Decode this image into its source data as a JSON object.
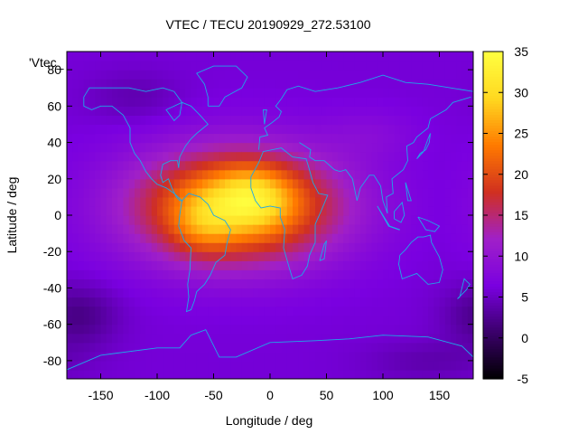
{
  "chart_data": {
    "type": "heatmap",
    "title": "VTEC / TECU 20190929_272.53100",
    "xlabel": "Longitude / deg",
    "ylabel": "Latitude / deg",
    "key_label": "'Vtec_",
    "xlim": [
      -180,
      180
    ],
    "ylim": [
      -90,
      90
    ],
    "x_ticks": [
      -150,
      -100,
      -50,
      0,
      50,
      100,
      150
    ],
    "y_ticks": [
      -80,
      -60,
      -40,
      -20,
      0,
      20,
      40,
      60,
      80
    ],
    "colorbar": {
      "min": -5,
      "max": 35,
      "ticks": [
        -5,
        0,
        5,
        10,
        15,
        20,
        25,
        30,
        35
      ],
      "palette": [
        "#000000",
        "#3a006a",
        "#7a00e0",
        "#a020c8",
        "#d03020",
        "#ff7a00",
        "#ffd820",
        "#ffff40"
      ]
    },
    "grid": false,
    "legend": "none",
    "background_level": 6,
    "features": [
      {
        "lon": -30,
        "lat": 5,
        "peak": 21,
        "sigma_lon": 65,
        "sigma_lat": 22
      },
      {
        "lon": -15,
        "lat": 10,
        "peak": 8,
        "sigma_lon": 25,
        "sigma_lat": 12
      },
      {
        "lon": -60,
        "lat": -5,
        "peak": 5,
        "sigma_lon": 20,
        "sigma_lat": 12
      },
      {
        "lon": 90,
        "lat": 45,
        "peak": 2,
        "sigma_lon": 30,
        "sigma_lat": 10
      },
      {
        "lon": -170,
        "lat": -55,
        "peak": -4,
        "sigma_lon": 25,
        "sigma_lat": 12
      },
      {
        "lon": -120,
        "lat": 65,
        "peak": -2,
        "sigma_lon": 30,
        "sigma_lat": 10
      },
      {
        "lon": 140,
        "lat": -80,
        "peak": -2,
        "sigma_lon": 40,
        "sigma_lat": 8
      }
    ],
    "coastlines": [
      [
        [
          -165,
          65
        ],
        [
          -160,
          70
        ],
        [
          -140,
          70
        ],
        [
          -125,
          70
        ],
        [
          -110,
          68
        ],
        [
          -95,
          70
        ],
        [
          -85,
          68
        ],
        [
          -78,
          62
        ],
        [
          -92,
          58
        ],
        [
          -85,
          52
        ],
        [
          -80,
          55
        ],
        [
          -78,
          62
        ],
        [
          -70,
          60
        ],
        [
          -62,
          55
        ],
        [
          -55,
          50
        ],
        [
          -65,
          45
        ],
        [
          -70,
          42
        ],
        [
          -75,
          38
        ],
        [
          -80,
          32
        ],
        [
          -81,
          26
        ],
        [
          -82,
          30
        ],
        [
          -88,
          30
        ],
        [
          -95,
          28
        ],
        [
          -97,
          22
        ],
        [
          -95,
          18
        ],
        [
          -90,
          20
        ],
        [
          -87,
          15
        ],
        [
          -83,
          10
        ],
        [
          -80,
          8
        ],
        [
          -78,
          8
        ],
        [
          -85,
          12
        ],
        [
          -92,
          15
        ],
        [
          -100,
          17
        ],
        [
          -105,
          20
        ],
        [
          -110,
          24
        ],
        [
          -115,
          30
        ],
        [
          -120,
          34
        ],
        [
          -124,
          40
        ],
        [
          -124,
          48
        ],
        [
          -130,
          55
        ],
        [
          -140,
          60
        ],
        [
          -150,
          60
        ],
        [
          -158,
          58
        ],
        [
          -165,
          60
        ],
        [
          -165,
          65
        ]
      ],
      [
        [
          -78,
          8
        ],
        [
          -72,
          12
        ],
        [
          -62,
          10
        ],
        [
          -55,
          6
        ],
        [
          -50,
          0
        ],
        [
          -40,
          -3
        ],
        [
          -35,
          -8
        ],
        [
          -38,
          -15
        ],
        [
          -40,
          -22
        ],
        [
          -48,
          -26
        ],
        [
          -53,
          -33
        ],
        [
          -58,
          -38
        ],
        [
          -65,
          -42
        ],
        [
          -67,
          -47
        ],
        [
          -70,
          -52
        ],
        [
          -74,
          -53
        ],
        [
          -72,
          -45
        ],
        [
          -73,
          -38
        ],
        [
          -71,
          -30
        ],
        [
          -70,
          -18
        ],
        [
          -76,
          -14
        ],
        [
          -81,
          -6
        ],
        [
          -80,
          0
        ],
        [
          -78,
          8
        ]
      ],
      [
        [
          -17,
          15
        ],
        [
          -17,
          21
        ],
        [
          -10,
          29
        ],
        [
          -6,
          35
        ],
        [
          10,
          37
        ],
        [
          20,
          32
        ],
        [
          32,
          31
        ],
        [
          34,
          27
        ],
        [
          38,
          18
        ],
        [
          43,
          12
        ],
        [
          51,
          11
        ],
        [
          45,
          2
        ],
        [
          40,
          -5
        ],
        [
          40,
          -15
        ],
        [
          35,
          -22
        ],
        [
          33,
          -28
        ],
        [
          28,
          -33
        ],
        [
          20,
          -35
        ],
        [
          17,
          -29
        ],
        [
          12,
          -18
        ],
        [
          13,
          -8
        ],
        [
          9,
          -1
        ],
        [
          9,
          4
        ],
        [
          0,
          5
        ],
        [
          -8,
          4
        ],
        [
          -13,
          8
        ],
        [
          -17,
          15
        ]
      ],
      [
        [
          -10,
          36
        ],
        [
          -9,
          43
        ],
        [
          -2,
          44
        ],
        [
          -5,
          48
        ],
        [
          2,
          51
        ],
        [
          8,
          54
        ],
        [
          10,
          57
        ],
        [
          5,
          60
        ],
        [
          10,
          64
        ],
        [
          15,
          69
        ],
        [
          25,
          71
        ],
        [
          40,
          68
        ],
        [
          60,
          70
        ],
        [
          80,
          73
        ],
        [
          100,
          77
        ],
        [
          120,
          73
        ],
        [
          140,
          72
        ],
        [
          160,
          70
        ],
        [
          180,
          68
        ]
      ],
      [
        [
          26,
          40
        ],
        [
          36,
          36
        ],
        [
          35,
          32
        ],
        [
          40,
          30
        ],
        [
          48,
          30
        ],
        [
          57,
          25
        ],
        [
          62,
          24
        ],
        [
          67,
          25
        ],
        [
          73,
          20
        ],
        [
          77,
          8
        ],
        [
          80,
          15
        ],
        [
          88,
          22
        ],
        [
          92,
          22
        ],
        [
          98,
          16
        ],
        [
          100,
          8
        ],
        [
          104,
          1
        ],
        [
          103,
          10
        ],
        [
          109,
          12
        ],
        [
          108,
          20
        ],
        [
          118,
          25
        ],
        [
          122,
          30
        ],
        [
          121,
          38
        ],
        [
          127,
          40
        ],
        [
          130,
          43
        ],
        [
          140,
          48
        ],
        [
          142,
          53
        ],
        [
          156,
          58
        ],
        [
          162,
          62
        ],
        [
          178,
          65
        ]
      ],
      [
        [
          115,
          -22
        ],
        [
          114,
          -27
        ],
        [
          117,
          -35
        ],
        [
          130,
          -32
        ],
        [
          140,
          -38
        ],
        [
          150,
          -37
        ],
        [
          153,
          -30
        ],
        [
          150,
          -23
        ],
        [
          143,
          -15
        ],
        [
          142,
          -11
        ],
        [
          136,
          -12
        ],
        [
          131,
          -12
        ],
        [
          125,
          -15
        ],
        [
          120,
          -19
        ],
        [
          115,
          -22
        ]
      ],
      [
        [
          -70,
          -66
        ],
        [
          -57,
          -63
        ],
        [
          -45,
          -78
        ],
        [
          -30,
          -78
        ],
        [
          0,
          -70
        ],
        [
          40,
          -69
        ],
        [
          70,
          -68
        ],
        [
          100,
          -66
        ],
        [
          140,
          -67
        ],
        [
          170,
          -72
        ],
        [
          180,
          -78
        ]
      ],
      [
        [
          -180,
          -85
        ],
        [
          -150,
          -77
        ],
        [
          -100,
          -73
        ],
        [
          -80,
          -73
        ],
        [
          -70,
          -66
        ]
      ],
      [
        [
          -55,
          60
        ],
        [
          -45,
          60
        ],
        [
          -40,
          65
        ],
        [
          -25,
          70
        ],
        [
          -20,
          76
        ],
        [
          -30,
          82
        ],
        [
          -50,
          82
        ],
        [
          -65,
          78
        ],
        [
          -58,
          72
        ],
        [
          -55,
          65
        ],
        [
          -55,
          60
        ]
      ],
      [
        [
          130,
          31
        ],
        [
          133,
          34
        ],
        [
          138,
          36
        ],
        [
          141,
          40
        ],
        [
          142,
          45
        ],
        [
          140,
          42
        ],
        [
          136,
          35
        ],
        [
          130,
          31
        ]
      ],
      [
        [
          95,
          5
        ],
        [
          105,
          -6
        ],
        [
          114,
          -8
        ],
        [
          115,
          -8
        ],
        [
          106,
          -6
        ],
        [
          98,
          2
        ],
        [
          95,
          5
        ]
      ],
      [
        [
          110,
          -2
        ],
        [
          110,
          2
        ],
        [
          117,
          7
        ],
        [
          119,
          0
        ],
        [
          116,
          -4
        ],
        [
          110,
          -2
        ]
      ],
      [
        [
          131,
          -1
        ],
        [
          140,
          -3
        ],
        [
          150,
          -6
        ],
        [
          146,
          -9
        ],
        [
          138,
          -8
        ],
        [
          131,
          -1
        ]
      ],
      [
        [
          44,
          -25
        ],
        [
          48,
          -16
        ],
        [
          50,
          -14
        ],
        [
          48,
          -24
        ],
        [
          44,
          -25
        ]
      ],
      [
        [
          166,
          -46
        ],
        [
          174,
          -41
        ],
        [
          177,
          -38
        ],
        [
          172,
          -35
        ],
        [
          168,
          -45
        ],
        [
          166,
          -46
        ]
      ],
      [
        [
          -5,
          50
        ],
        [
          -3,
          58
        ],
        [
          -6,
          58
        ],
        [
          -5,
          50
        ]
      ],
      [
        [
          120,
          18
        ],
        [
          122,
          14
        ],
        [
          125,
          8
        ],
        [
          122,
          8
        ],
        [
          120,
          18
        ]
      ]
    ]
  }
}
